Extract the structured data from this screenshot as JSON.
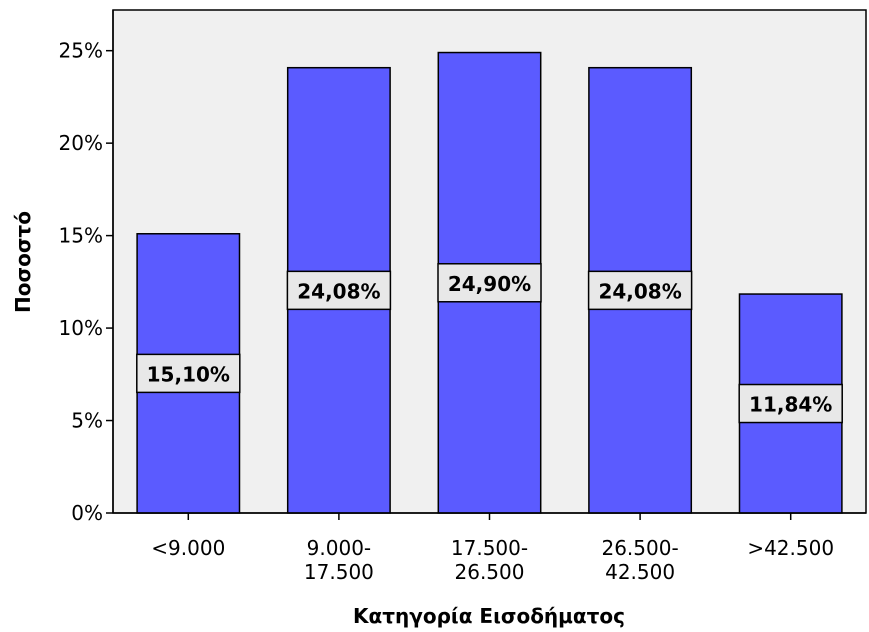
{
  "chart_data": {
    "type": "bar",
    "categories": [
      "<9.000",
      "9.000-17.500",
      "17.500-26.500",
      "26.500-42.500",
      ">42.500"
    ],
    "category_label_lines": [
      [
        "<9.000"
      ],
      [
        "9.000-",
        "17.500"
      ],
      [
        "17.500-",
        "26.500"
      ],
      [
        "26.500-",
        "42.500"
      ],
      [
        ">42.500"
      ]
    ],
    "values": [
      15.1,
      24.08,
      24.9,
      24.08,
      11.84
    ],
    "data_labels": [
      "15,10%",
      "24,08%",
      "24,90%",
      "24,08%",
      "11,84%"
    ],
    "title": "",
    "xlabel": "Κατηγορία Εισοδήματος",
    "ylabel": "Ποσοστό",
    "ylim": [
      0,
      27.2
    ],
    "yticks": [
      0,
      5,
      10,
      15,
      20,
      25
    ],
    "ytick_labels": [
      "0%",
      "5%",
      "10%",
      "15%",
      "20%",
      "25%"
    ],
    "grid": false,
    "legend": "none",
    "colors": {
      "bar": "#5b5bff",
      "plot_background": "#f0f0f0",
      "label_box": "#e8e8e8",
      "axis": "#000000"
    }
  }
}
